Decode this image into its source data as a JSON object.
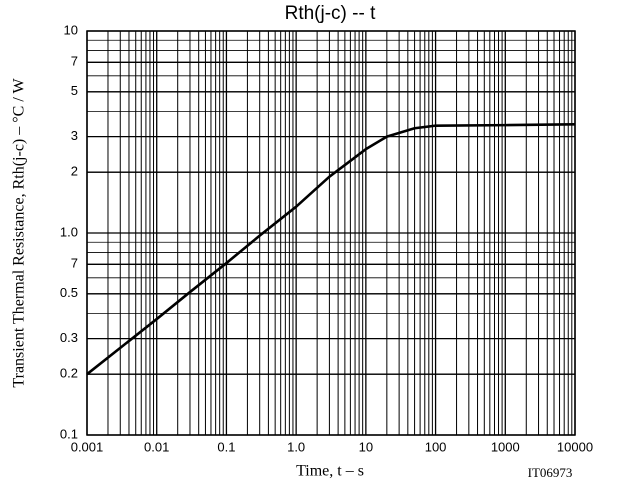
{
  "chart_data": {
    "type": "line",
    "title": "Rth(j-c)  --  t",
    "x_label": "Time, t  –  s",
    "y_label": "Transient Thermal Resistance, Rth(j-c)  –  °C / W",
    "annotation": "IT06973",
    "x": [
      0.001,
      0.003,
      0.01,
      0.03,
      0.1,
      0.3,
      1,
      3,
      10,
      20,
      50,
      100,
      1000,
      10000
    ],
    "series": [
      {
        "name": "Rth(j-c)",
        "color": "#000000",
        "values": [
          0.2,
          0.27,
          0.375,
          0.51,
          0.71,
          0.97,
          1.35,
          1.9,
          2.6,
          3.0,
          3.3,
          3.4,
          3.42,
          3.45
        ]
      }
    ],
    "xlim": [
      0.001,
      10000
    ],
    "ylim": [
      0.1,
      10
    ],
    "xscale": "log",
    "yscale": "log",
    "grid": true,
    "xticks": [
      0.001,
      0.01,
      0.1,
      {
        "value": 1,
        "label": "1.0"
      },
      10,
      100,
      1000,
      10000
    ],
    "yticks": [
      0.1,
      0.2,
      0.3,
      0.5,
      {
        "value": 0.7,
        "label": "7"
      },
      {
        "value": 1,
        "label": "1.0"
      },
      2,
      3,
      5,
      7,
      10
    ]
  }
}
